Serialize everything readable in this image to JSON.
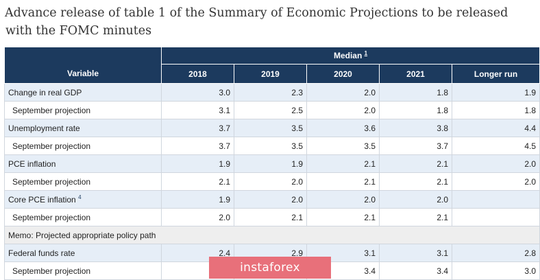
{
  "heading": {
    "line1": "Advance release of table 1 of the Summary of Economic Projections to be released",
    "line2": "with the FOMC minutes"
  },
  "table": {
    "variable_header": "Variable",
    "median_header": "Median",
    "median_footnote": "1",
    "years": [
      "2018",
      "2019",
      "2020",
      "2021",
      "Longer run"
    ],
    "rows": [
      {
        "label": "Change in real GDP",
        "note": "",
        "values": [
          "3.0",
          "2.3",
          "2.0",
          "1.8",
          "1.9"
        ]
      },
      {
        "label": "September projection",
        "note": "",
        "values": [
          "3.1",
          "2.5",
          "2.0",
          "1.8",
          "1.8"
        ]
      },
      {
        "label": "Unemployment rate",
        "note": "",
        "values": [
          "3.7",
          "3.5",
          "3.6",
          "3.8",
          "4.4"
        ]
      },
      {
        "label": "September projection",
        "note": "",
        "values": [
          "3.7",
          "3.5",
          "3.5",
          "3.7",
          "4.5"
        ]
      },
      {
        "label": "PCE inflation",
        "note": "",
        "values": [
          "1.9",
          "1.9",
          "2.1",
          "2.1",
          "2.0"
        ]
      },
      {
        "label": "September projection",
        "note": "",
        "values": [
          "2.1",
          "2.0",
          "2.1",
          "2.1",
          "2.0"
        ]
      },
      {
        "label": "Core PCE inflation",
        "note": "4",
        "values": [
          "1.9",
          "2.0",
          "2.0",
          "2.0",
          ""
        ]
      },
      {
        "label": "September projection",
        "note": "",
        "values": [
          "2.0",
          "2.1",
          "2.1",
          "2.1",
          ""
        ]
      },
      {
        "label": "Memo: Projected appropriate policy path",
        "note": "",
        "values": []
      },
      {
        "label": "Federal funds rate",
        "note": "",
        "values": [
          "2.4",
          "2.9",
          "3.1",
          "3.1",
          "2.8"
        ]
      },
      {
        "label": "September projection",
        "note": "",
        "values": [
          "",
          "",
          "3.4",
          "3.4",
          "3.0"
        ]
      }
    ]
  },
  "watermark": {
    "text": "instaforex"
  }
}
